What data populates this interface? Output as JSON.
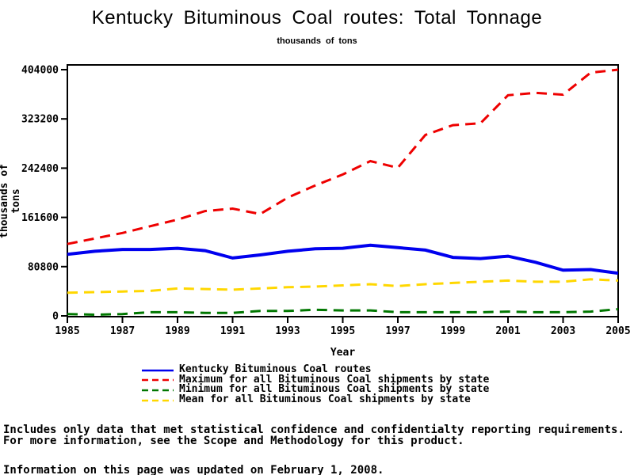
{
  "title": "Kentucky Bituminous Coal routes: Total Tonnage",
  "subtitle": "thousands of tons",
  "chart_data": {
    "type": "line",
    "title": "Kentucky Bituminous Coal routes: Total Tonnage",
    "subtitle": "thousands of tons",
    "xlabel": "Year",
    "ylabel": "thousands of tons",
    "xlim": [
      1985,
      2005
    ],
    "ylim": [
      0,
      404000
    ],
    "grid": false,
    "legend_position": "bottom",
    "x": [
      1985,
      1986,
      1987,
      1988,
      1989,
      1990,
      1991,
      1992,
      1993,
      1994,
      1995,
      1996,
      1997,
      1998,
      1999,
      2000,
      2001,
      2002,
      2003,
      2004,
      2005
    ],
    "x_tick_labels": [
      "1985",
      "1987",
      "1989",
      "1991",
      "1993",
      "1995",
      "1997",
      "1999",
      "2001",
      "2003",
      "2005"
    ],
    "y_ticks": [
      0,
      80800,
      161600,
      242400,
      323200,
      404000
    ],
    "y_tick_labels": [
      "0",
      "80800",
      "161600",
      "242400",
      "323200",
      "404000"
    ],
    "series": [
      {
        "name": "Kentucky Bituminous Coal routes",
        "color": "#0000ee",
        "style": "solid",
        "values": [
          101000,
          106000,
          109000,
          109000,
          111000,
          107000,
          95000,
          100000,
          106000,
          110000,
          111000,
          116000,
          112000,
          108000,
          96000,
          94000,
          98000,
          88000,
          75000,
          76000,
          70000
        ]
      },
      {
        "name": "Maximum for all Bituminous Coal shipments by state",
        "color": "#ee0000",
        "style": "dashed",
        "values": [
          118000,
          127000,
          136000,
          147000,
          158000,
          172000,
          176000,
          167000,
          194000,
          214000,
          232000,
          254000,
          243000,
          297000,
          313000,
          316000,
          362000,
          366000,
          363000,
          399000,
          404000
        ]
      },
      {
        "name": "Minimum for all Bituminous Coal shipments by state",
        "color": "#007700",
        "style": "dashed",
        "values": [
          3000,
          2000,
          3000,
          6000,
          6000,
          5000,
          5000,
          8000,
          8000,
          10000,
          9000,
          9000,
          6000,
          6000,
          6000,
          6000,
          7000,
          6000,
          6000,
          7000,
          11000
        ]
      },
      {
        "name": "Mean for all Bituminous Coal shipments by state",
        "color": "#ffd700",
        "style": "dashed",
        "values": [
          38000,
          39000,
          40000,
          41000,
          45000,
          44000,
          43000,
          45000,
          47000,
          48000,
          50000,
          52000,
          49000,
          52000,
          54000,
          56000,
          58000,
          56000,
          56000,
          60000,
          58000
        ]
      }
    ]
  },
  "footnotes": {
    "line1": "Includes only data that met statistical confidence and confidentialty reporting requirements.",
    "line2": "For more information, see the Scope and Methodology for this product."
  },
  "updated": "Information on this page was updated on February 1, 2008."
}
